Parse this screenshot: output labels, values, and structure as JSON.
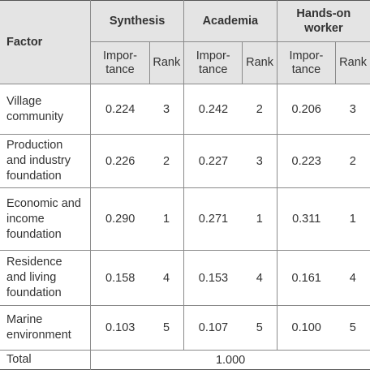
{
  "table": {
    "factor_header": "Factor",
    "groups": [
      "Synthesis",
      "Academia",
      "Hands-on worker"
    ],
    "importance_label": "Impor-\ntance",
    "rank_label": "Rank",
    "rows": [
      {
        "name": "Village\ncommunity",
        "values": [
          "0.224",
          "3",
          "0.242",
          "2",
          "0.206",
          "3"
        ]
      },
      {
        "name": "Production\nand industry\nfoundation",
        "values": [
          "0.226",
          "2",
          "0.227",
          "3",
          "0.223",
          "2"
        ]
      },
      {
        "name": "Economic and\nincome\nfoundation",
        "values": [
          "0.290",
          "1",
          "0.271",
          "1",
          "0.311",
          "1"
        ]
      },
      {
        "name": "Residence\nand living\nfoundation",
        "values": [
          "0.158",
          "4",
          "0.153",
          "4",
          "0.161",
          "4"
        ]
      },
      {
        "name": "Marine\nenvironment",
        "values": [
          "0.103",
          "5",
          "0.107",
          "5",
          "0.100",
          "5"
        ]
      }
    ],
    "total_label": "Total",
    "total_value": "1.000"
  }
}
